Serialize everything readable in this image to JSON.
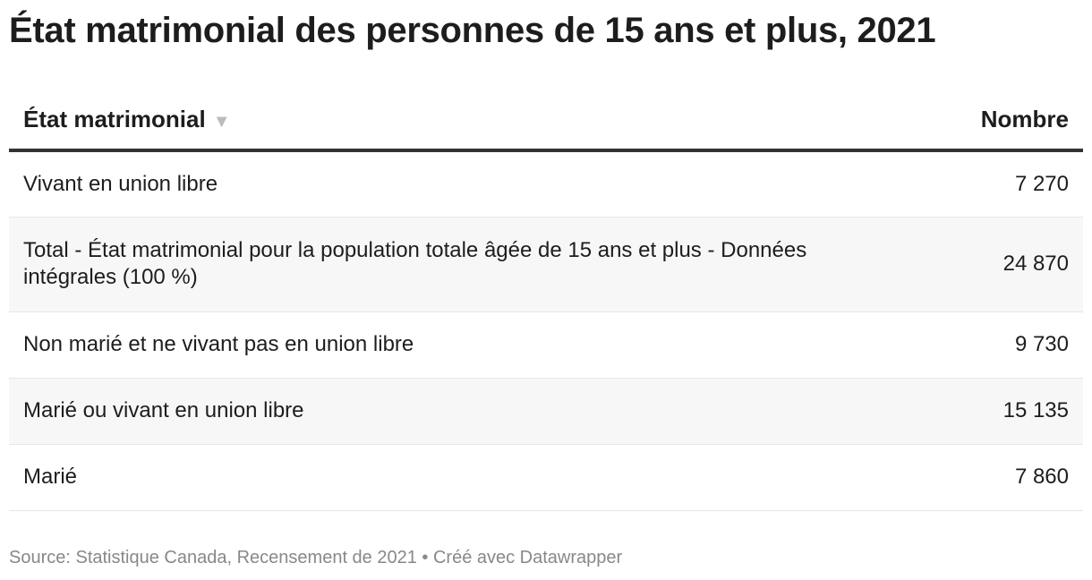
{
  "title": "État matrimonial des personnes de 15 ans et plus, 2021",
  "chart_data": {
    "type": "table",
    "columns": [
      "État matrimonial",
      "Nombre"
    ],
    "sort_indicator": "▼",
    "rows": [
      {
        "label": "Vivant en union libre",
        "value": "7 270"
      },
      {
        "label": "Total - État matrimonial pour la population totale âgée de 15 ans et plus - Données intégrales (100 %)",
        "value": "24 870"
      },
      {
        "label": "Non marié et ne vivant pas en union libre",
        "value": "9 730"
      },
      {
        "label": "Marié ou vivant en union libre",
        "value": "15 135"
      },
      {
        "label": "Marié",
        "value": "7 860"
      }
    ]
  },
  "footer": "Source: Statistique Canada, Recensement de 2021 • Créé avec Datawrapper",
  "colors": {
    "stripe": "#f7f7f7",
    "header_rule": "#333333",
    "footer_text": "#888888"
  }
}
